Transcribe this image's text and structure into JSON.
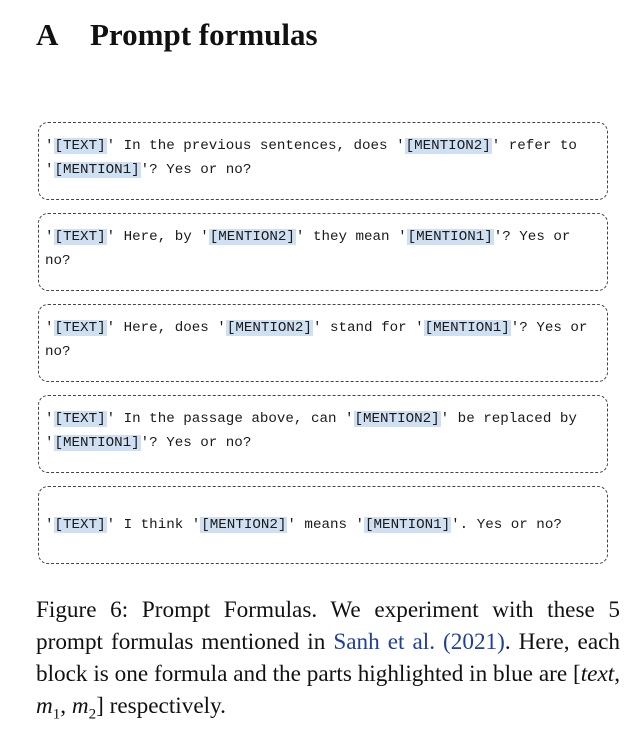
{
  "section": {
    "number": "A",
    "title": "Prompt formulas"
  },
  "formulas": [
    {
      "parts": [
        {
          "text": "'",
          "highlight": false
        },
        {
          "text": "[TEXT]",
          "highlight": true
        },
        {
          "text": "' In the previous sentences, does '",
          "highlight": false
        },
        {
          "text": "[MENTION2]",
          "highlight": true
        },
        {
          "text": "' refer to '",
          "highlight": false
        },
        {
          "text": "[MENTION1]",
          "highlight": true
        },
        {
          "text": "'? Yes or no?",
          "highlight": false
        }
      ]
    },
    {
      "parts": [
        {
          "text": "'",
          "highlight": false
        },
        {
          "text": "[TEXT]",
          "highlight": true
        },
        {
          "text": "' Here, by '",
          "highlight": false
        },
        {
          "text": "[MENTION2]",
          "highlight": true
        },
        {
          "text": "' they mean '",
          "highlight": false
        },
        {
          "text": "[MENTION1]",
          "highlight": true
        },
        {
          "text": "'? Yes or no?",
          "highlight": false
        }
      ]
    },
    {
      "parts": [
        {
          "text": "'",
          "highlight": false
        },
        {
          "text": "[TEXT]",
          "highlight": true
        },
        {
          "text": "' Here, does '",
          "highlight": false
        },
        {
          "text": "[MENTION2]",
          "highlight": true
        },
        {
          "text": "' stand for '",
          "highlight": false
        },
        {
          "text": "[MENTION1]",
          "highlight": true
        },
        {
          "text": "'? Yes or no?",
          "highlight": false
        }
      ]
    },
    {
      "parts": [
        {
          "text": "'",
          "highlight": false
        },
        {
          "text": "[TEXT]",
          "highlight": true
        },
        {
          "text": "' In the passage above, can '",
          "highlight": false
        },
        {
          "text": "[MENTION2]",
          "highlight": true
        },
        {
          "text": "' be replaced by '",
          "highlight": false
        },
        {
          "text": "[MENTION1]",
          "highlight": true
        },
        {
          "text": "'? Yes or no?",
          "highlight": false
        }
      ]
    },
    {
      "parts": [
        {
          "text": "'",
          "highlight": false
        },
        {
          "text": "[TEXT]",
          "highlight": true
        },
        {
          "text": "' I think '",
          "highlight": false
        },
        {
          "text": "[MENTION2]",
          "highlight": true
        },
        {
          "text": "' means '",
          "highlight": false
        },
        {
          "text": "[MENTION1]",
          "highlight": true
        },
        {
          "text": "'. Yes or no?",
          "highlight": false
        }
      ]
    }
  ],
  "caption": {
    "label": "Figure 6:",
    "text_before_citation": "Prompt Formulas. We experiment with these 5 prompt formulas mentioned in",
    "citation_author": "Sanh et al.",
    "citation_year": "2021",
    "text_after_citation_1": "Here, each block is one formula and the parts highlighted in blue are",
    "math_text": "text",
    "math_m": "m",
    "math_sub1": "1",
    "math_sub2": "2",
    "text_after_math": "respectively."
  },
  "colors": {
    "highlight": "#cfe0f3",
    "citation": "#1f3f9a",
    "border": "#444444"
  }
}
